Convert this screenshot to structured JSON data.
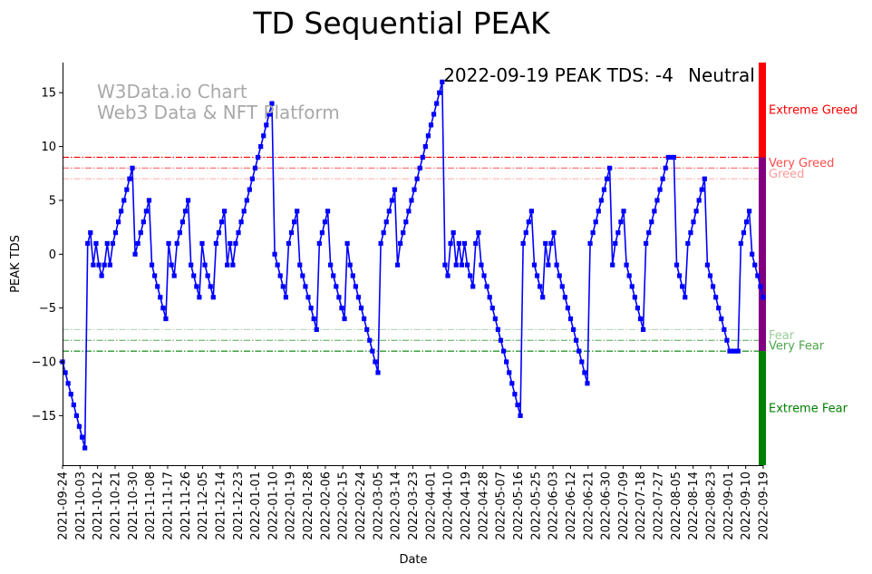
{
  "chart_data": {
    "type": "line",
    "title": "TD Sequential PEAK",
    "xlabel": "Date",
    "ylabel": "PEAK TDS",
    "ylim": [
      -19.6,
      17.8
    ],
    "xlim": [
      "2021-09-24",
      "2022-09-19"
    ],
    "grid": false,
    "yticks": [
      -15,
      -10,
      -5,
      0,
      5,
      10,
      15
    ],
    "xticks": [
      "2021-09-24",
      "2021-10-03",
      "2021-10-12",
      "2021-10-21",
      "2021-10-30",
      "2021-11-08",
      "2021-11-17",
      "2021-11-26",
      "2021-12-05",
      "2021-12-14",
      "2021-12-23",
      "2022-01-01",
      "2022-01-10",
      "2022-01-19",
      "2022-01-28",
      "2022-02-06",
      "2022-02-15",
      "2022-02-24",
      "2022-03-05",
      "2022-03-14",
      "2022-03-23",
      "2022-04-01",
      "2022-04-10",
      "2022-04-19",
      "2022-04-28",
      "2022-05-07",
      "2022-05-16",
      "2022-05-25",
      "2022-06-03",
      "2022-06-12",
      "2022-06-21",
      "2022-06-30",
      "2022-07-09",
      "2022-07-18",
      "2022-07-27",
      "2022-08-05",
      "2022-08-14",
      "2022-08-23",
      "2022-09-01",
      "2022-09-10",
      "2022-09-19"
    ],
    "series": [
      {
        "color": "#0000ff",
        "start_date": "2021-09-24",
        "values": [
          -10,
          -11,
          -12,
          -13,
          -14,
          -15,
          -16,
          -17,
          -18,
          1,
          2,
          -1,
          1,
          -1,
          -2,
          -1,
          1,
          -1,
          1,
          2,
          3,
          4,
          5,
          6,
          7,
          8,
          0,
          1,
          2,
          3,
          4,
          5,
          -1,
          -2,
          -3,
          -4,
          -5,
          -6,
          1,
          -1,
          -2,
          1,
          2,
          3,
          4,
          5,
          -1,
          -2,
          -3,
          -4,
          1,
          -1,
          -2,
          -3,
          -4,
          1,
          2,
          3,
          4,
          -1,
          1,
          -1,
          1,
          2,
          3,
          4,
          5,
          6,
          7,
          8,
          9,
          10,
          11,
          12,
          13,
          14,
          0,
          -1,
          -2,
          -3,
          -4,
          1,
          2,
          3,
          4,
          -1,
          -2,
          -3,
          -4,
          -5,
          -6,
          -7,
          1,
          2,
          3,
          4,
          -1,
          -2,
          -3,
          -4,
          -5,
          -6,
          1,
          -1,
          -2,
          -3,
          -4,
          -5,
          -6,
          -7,
          -8,
          -9,
          -10,
          -11,
          1,
          2,
          3,
          4,
          5,
          6,
          -1,
          1,
          2,
          3,
          4,
          5,
          6,
          7,
          8,
          9,
          10,
          11,
          12,
          13,
          14,
          15,
          16,
          -1,
          -2,
          1,
          2,
          -1,
          1,
          -1,
          1,
          -1,
          -2,
          -3,
          1,
          2,
          -1,
          -2,
          -3,
          -4,
          -5,
          -6,
          -7,
          -8,
          -9,
          -10,
          -11,
          -12,
          -13,
          -14,
          -15,
          1,
          2,
          3,
          4,
          -1,
          -2,
          -3,
          -4,
          1,
          -1,
          1,
          2,
          -1,
          -2,
          -3,
          -4,
          -5,
          -6,
          -7,
          -8,
          -9,
          -10,
          -11,
          -12,
          1,
          2,
          3,
          4,
          5,
          6,
          7,
          8,
          -1,
          1,
          2,
          3,
          4,
          -1,
          -2,
          -3,
          -4,
          -5,
          -6,
          -7,
          1,
          2,
          3,
          4,
          5,
          6,
          7,
          8,
          9,
          9,
          9,
          -1,
          -2,
          -3,
          -4,
          1,
          2,
          3,
          4,
          5,
          6,
          7,
          -1,
          -2,
          -3,
          -4,
          -5,
          -6,
          -7,
          -8,
          -9,
          -9,
          -9,
          -9,
          1,
          2,
          3,
          4,
          0,
          -1,
          -2,
          -3,
          -4
        ]
      }
    ],
    "reference_lines": [
      {
        "y": 9,
        "color": "#ff0000",
        "style": "dashdot",
        "alpha": 1.0
      },
      {
        "y": 8,
        "color": "#ff0000",
        "style": "dashdot",
        "alpha": 0.6
      },
      {
        "y": 7,
        "color": "#ff0000",
        "style": "dashdot",
        "alpha": 0.3
      },
      {
        "y": -7,
        "color": "#008000",
        "style": "dashdot",
        "alpha": 0.3
      },
      {
        "y": -8,
        "color": "#008000",
        "style": "dashdot",
        "alpha": 0.6
      },
      {
        "y": -9,
        "color": "#008000",
        "style": "dashdot",
        "alpha": 1.0
      }
    ],
    "side_bar": [
      {
        "from": 9,
        "to": 17.8,
        "color": "#ff0000"
      },
      {
        "from": -9,
        "to": 9,
        "color": "#800080"
      },
      {
        "from": -19.6,
        "to": -9,
        "color": "#008000"
      }
    ],
    "zone_labels": [
      {
        "text": "Extreme Greed",
        "y": 13.4,
        "color": "#ff0000",
        "alpha": 1.0
      },
      {
        "text": "Very Greed",
        "y": 8.5,
        "color": "#ff0000",
        "alpha": 0.7
      },
      {
        "text": "Greed",
        "y": 7.5,
        "color": "#ff0000",
        "alpha": 0.4
      },
      {
        "text": "Fear",
        "y": -7.5,
        "color": "#008000",
        "alpha": 0.4
      },
      {
        "text": "Very Fear",
        "y": -8.5,
        "color": "#008000",
        "alpha": 0.7
      },
      {
        "text": "Extreme Fear",
        "y": -14.3,
        "color": "#008000",
        "alpha": 1.0
      }
    ],
    "annotations": {
      "status_text": "2022-09-19 PEAK TDS: -4",
      "status_word": "Neutral",
      "status_word_color": "#800080",
      "watermark_line1": "W3Data.io Chart",
      "watermark_line2": "Web3 Data & NFT Platform"
    }
  }
}
